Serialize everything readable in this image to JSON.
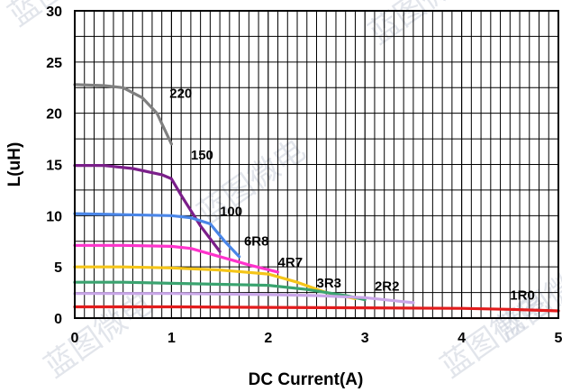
{
  "chart_data": {
    "type": "line",
    "xlabel": "DC Current(A)",
    "ylabel": "L(uH)",
    "xlim": [
      0,
      5
    ],
    "ylim": [
      0,
      30
    ],
    "x_ticks": [
      "0",
      "1",
      "2",
      "3",
      "4",
      "5"
    ],
    "y_ticks": [
      "0",
      "5",
      "10",
      "15",
      "20",
      "25",
      "30"
    ],
    "grid": true,
    "series": [
      {
        "name": "220",
        "color": "#7f7f7f",
        "label_at": [
          0.98,
          21.5
        ],
        "points": [
          [
            0,
            22.8
          ],
          [
            0.3,
            22.7
          ],
          [
            0.5,
            22.5
          ],
          [
            0.7,
            21.5
          ],
          [
            0.85,
            20
          ],
          [
            1.0,
            17
          ]
        ]
      },
      {
        "name": "150",
        "color": "#7b1f8a",
        "label_at": [
          1.2,
          15.5
        ],
        "points": [
          [
            0,
            14.9
          ],
          [
            0.3,
            14.9
          ],
          [
            0.6,
            14.6
          ],
          [
            0.9,
            14.0
          ],
          [
            1.0,
            13.6
          ],
          [
            1.1,
            12
          ],
          [
            1.3,
            9
          ],
          [
            1.5,
            6.5
          ]
        ]
      },
      {
        "name": "100",
        "color": "#4a86e8",
        "label_at": [
          1.5,
          10.0
        ],
        "points": [
          [
            0,
            10.2
          ],
          [
            0.5,
            10.1
          ],
          [
            1.0,
            10.0
          ],
          [
            1.2,
            9.8
          ],
          [
            1.4,
            9.2
          ],
          [
            1.55,
            7.5
          ],
          [
            1.7,
            6.0
          ]
        ]
      },
      {
        "name": "6R8",
        "color": "#ff33cc",
        "label_at": [
          1.75,
          7.1
        ],
        "points": [
          [
            0,
            7.1
          ],
          [
            0.5,
            7.1
          ],
          [
            1.0,
            7.0
          ],
          [
            1.2,
            6.8
          ],
          [
            1.5,
            6.0
          ],
          [
            1.8,
            5.2
          ],
          [
            2.1,
            4.5
          ]
        ]
      },
      {
        "name": "4R7",
        "color": "#f5c518",
        "label_at": [
          2.1,
          5.0
        ],
        "points": [
          [
            0,
            5.0
          ],
          [
            0.5,
            5.0
          ],
          [
            1.0,
            4.9
          ],
          [
            1.5,
            4.7
          ],
          [
            2.0,
            4.3
          ],
          [
            2.3,
            3.5
          ],
          [
            2.6,
            2.5
          ],
          [
            2.9,
            1.9
          ]
        ]
      },
      {
        "name": "3R3",
        "color": "#3aa36f",
        "label_at": [
          2.5,
          3.0
        ],
        "points": [
          [
            0,
            3.5
          ],
          [
            0.5,
            3.5
          ],
          [
            1.0,
            3.4
          ],
          [
            1.5,
            3.3
          ],
          [
            2.0,
            3.2
          ],
          [
            2.4,
            2.8
          ],
          [
            2.8,
            2.2
          ],
          [
            3.0,
            1.8
          ]
        ]
      },
      {
        "name": "2R2",
        "color": "#c9a6e8",
        "label_at": [
          3.1,
          2.7
        ],
        "points": [
          [
            0,
            2.4
          ],
          [
            1.0,
            2.4
          ],
          [
            2.0,
            2.3
          ],
          [
            2.5,
            2.2
          ],
          [
            3.0,
            2.0
          ],
          [
            3.4,
            1.6
          ],
          [
            3.5,
            1.5
          ]
        ]
      },
      {
        "name": "1R0",
        "color": "#e21b1b",
        "label_at": [
          4.5,
          1.8
        ],
        "points": [
          [
            0,
            1.1
          ],
          [
            1,
            1.1
          ],
          [
            2,
            1.05
          ],
          [
            3,
            1.0
          ],
          [
            4,
            0.95
          ],
          [
            4.5,
            0.85
          ],
          [
            5,
            0.7
          ]
        ]
      }
    ]
  },
  "watermark": {
    "text": "蓝图微电",
    "color": "#bfc6d4"
  }
}
